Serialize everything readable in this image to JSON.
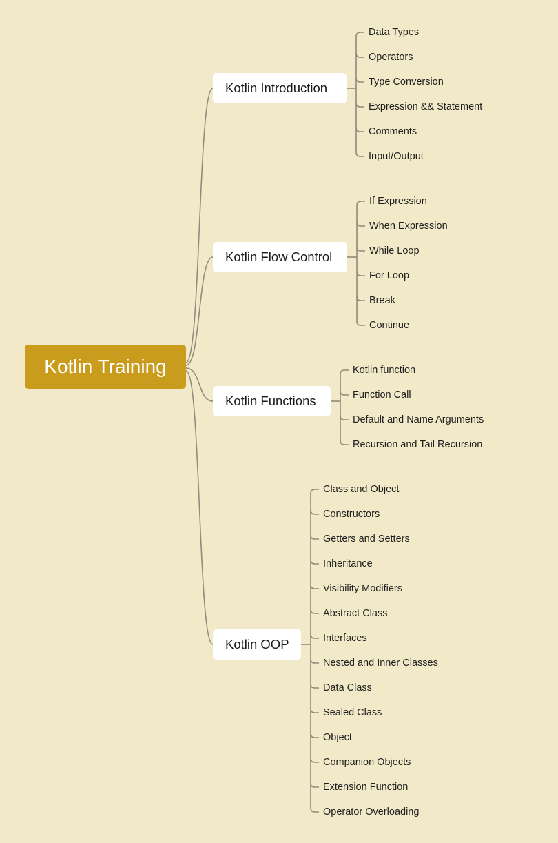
{
  "colors": {
    "background": "#f1e9c8",
    "root": "#c99c1d",
    "connector": "#928a7c",
    "branch_bg": "#ffffff"
  },
  "root": {
    "label": "Kotlin Training"
  },
  "branches": [
    {
      "label": "Kotlin Introduction",
      "children": [
        "Data Types",
        "Operators",
        "Type Conversion",
        "Expression && Statement",
        "Comments",
        "Input/Output"
      ]
    },
    {
      "label": "Kotlin Flow Control",
      "children": [
        "If Expression",
        "When Expression",
        "While Loop",
        "For Loop",
        "Break",
        "Continue"
      ]
    },
    {
      "label": "Kotlin Functions",
      "children": [
        "Kotlin function",
        "Function Call",
        "Default and Name Arguments",
        "Recursion and Tail Recursion"
      ]
    },
    {
      "label": "Kotlin OOP",
      "children": [
        "Class and Object",
        "Constructors",
        "Getters and Setters",
        "Inheritance",
        "Visibility Modifiers",
        "Abstract Class",
        "Interfaces",
        "Nested and Inner Classes",
        "Data Class",
        "Sealed Class",
        "Object",
        "Companion Objects",
        "Extension Function",
        "Operator Overloading"
      ]
    }
  ]
}
